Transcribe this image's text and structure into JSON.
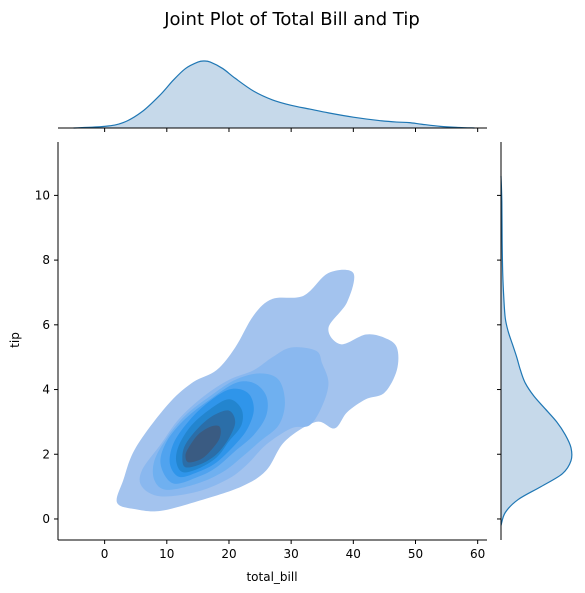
{
  "chart_data": {
    "type": "kde-joint",
    "title": "Joint Plot of Total Bill and Tip",
    "xlabel": "total_bill",
    "ylabel": "tip",
    "xlim": [
      -7.5,
      61.5
    ],
    "ylim": [
      -0.65,
      11.65
    ],
    "xticks": [
      0,
      10,
      20,
      30,
      40,
      50,
      60
    ],
    "yticks": [
      0,
      2,
      4,
      6,
      8,
      10
    ],
    "joint_fill_color": "#1f8fe8",
    "marginal_line_color": "#1f77b4",
    "marginal_fill_color": "#c6d9ea",
    "marginal_x_density": {
      "x": [
        -5,
        0,
        3,
        6,
        9,
        11,
        13,
        15,
        16,
        17,
        19,
        21,
        24,
        27,
        30,
        33,
        36,
        40,
        44,
        47,
        49,
        51,
        54,
        57,
        59.5
      ],
      "density": [
        0.0,
        0.003,
        0.01,
        0.03,
        0.062,
        0.088,
        0.11,
        0.122,
        0.124,
        0.122,
        0.11,
        0.092,
        0.068,
        0.052,
        0.042,
        0.035,
        0.028,
        0.02,
        0.014,
        0.011,
        0.01,
        0.007,
        0.003,
        0.001,
        0.0
      ]
    },
    "marginal_y_density": {
      "y": [
        -0.2,
        0.2,
        0.6,
        1.0,
        1.4,
        1.8,
        2.2,
        2.6,
        3.0,
        3.4,
        3.8,
        4.2,
        4.6,
        5.0,
        5.4,
        5.8,
        6.2,
        6.8,
        7.6,
        8.6,
        9.8,
        10.6
      ],
      "density": [
        0.0,
        0.015,
        0.06,
        0.14,
        0.215,
        0.245,
        0.245,
        0.225,
        0.195,
        0.155,
        0.115,
        0.085,
        0.068,
        0.055,
        0.04,
        0.025,
        0.015,
        0.01,
        0.006,
        0.004,
        0.003,
        0.0
      ]
    },
    "contour_levels": [
      {
        "level": 1,
        "color": "#a3c3ee",
        "points": [
          [
            9,
            0.25
          ],
          [
            15,
            0.55
          ],
          [
            22,
            1.0
          ],
          [
            26,
            1.5
          ],
          [
            29,
            2.4
          ],
          [
            34,
            3.0
          ],
          [
            37,
            2.8
          ],
          [
            39,
            3.3
          ],
          [
            42,
            3.7
          ],
          [
            45,
            3.9
          ],
          [
            47,
            4.6
          ],
          [
            47,
            5.3
          ],
          [
            45,
            5.6
          ],
          [
            42,
            5.7
          ],
          [
            38,
            5.4
          ],
          [
            36,
            5.9
          ],
          [
            39,
            6.7
          ],
          [
            40,
            7.6
          ],
          [
            36,
            7.6
          ],
          [
            32,
            6.9
          ],
          [
            27,
            6.8
          ],
          [
            24,
            6.3
          ],
          [
            21,
            5.3
          ],
          [
            18,
            4.6
          ],
          [
            14,
            4.2
          ],
          [
            10,
            3.5
          ],
          [
            5,
            2.2
          ],
          [
            3,
            1.2
          ],
          [
            2,
            0.5
          ],
          [
            5,
            0.3
          ]
        ]
      },
      {
        "level": 2,
        "color": "#8ab8ef",
        "points": [
          [
            9,
            0.7
          ],
          [
            15,
            0.85
          ],
          [
            20,
            1.25
          ],
          [
            23,
            1.7
          ],
          [
            26,
            2.3
          ],
          [
            30,
            2.8
          ],
          [
            33,
            2.9
          ],
          [
            35,
            3.5
          ],
          [
            36,
            4.2
          ],
          [
            35,
            4.8
          ],
          [
            34,
            5.2
          ],
          [
            30,
            5.3
          ],
          [
            27,
            5.0
          ],
          [
            24,
            4.6
          ],
          [
            20,
            4.3
          ],
          [
            16,
            3.8
          ],
          [
            12,
            3.1
          ],
          [
            9,
            2.3
          ],
          [
            6,
            1.5
          ],
          [
            6,
            1.0
          ]
        ]
      },
      {
        "level": 3,
        "color": "#6fb0f0",
        "points": [
          [
            10,
            0.9
          ],
          [
            15,
            1.1
          ],
          [
            19,
            1.45
          ],
          [
            22,
            1.9
          ],
          [
            25,
            2.4
          ],
          [
            28,
            2.9
          ],
          [
            29,
            3.6
          ],
          [
            28,
            4.3
          ],
          [
            25,
            4.5
          ],
          [
            21,
            4.3
          ],
          [
            17,
            3.8
          ],
          [
            13,
            3.2
          ],
          [
            10,
            2.5
          ],
          [
            8,
            1.8
          ],
          [
            8,
            1.2
          ]
        ]
      },
      {
        "level": 4,
        "color": "#50a3ef",
        "points": [
          [
            11,
            1.1
          ],
          [
            15,
            1.3
          ],
          [
            18,
            1.6
          ],
          [
            21,
            2.1
          ],
          [
            24,
            2.6
          ],
          [
            26,
            3.2
          ],
          [
            26,
            3.8
          ],
          [
            24,
            4.2
          ],
          [
            21,
            4.2
          ],
          [
            17,
            3.7
          ],
          [
            13,
            3.1
          ],
          [
            10,
            2.4
          ],
          [
            9,
            1.7
          ]
        ]
      },
      {
        "level": 5,
        "color": "#2f95ea",
        "points": [
          [
            12,
            1.3
          ],
          [
            15,
            1.45
          ],
          [
            18,
            1.75
          ],
          [
            21,
            2.3
          ],
          [
            23,
            2.8
          ],
          [
            24,
            3.4
          ],
          [
            23,
            3.9
          ],
          [
            20,
            4.0
          ],
          [
            16,
            3.5
          ],
          [
            13,
            2.9
          ],
          [
            11,
            2.3
          ],
          [
            10.5,
            1.7
          ]
        ]
      },
      {
        "level": 6,
        "color": "#2385cf",
        "points": [
          [
            12.5,
            1.45
          ],
          [
            15,
            1.55
          ],
          [
            18,
            1.9
          ],
          [
            20,
            2.4
          ],
          [
            22,
            2.9
          ],
          [
            22,
            3.4
          ],
          [
            20,
            3.7
          ],
          [
            17,
            3.4
          ],
          [
            14,
            2.9
          ],
          [
            12,
            2.3
          ],
          [
            11.5,
            1.8
          ]
        ]
      },
      {
        "level": 7,
        "color": "#2b6ea8",
        "points": [
          [
            13,
            1.6
          ],
          [
            15.5,
            1.7
          ],
          [
            18,
            2.0
          ],
          [
            20,
            2.5
          ],
          [
            21,
            3.0
          ],
          [
            20,
            3.35
          ],
          [
            17.5,
            3.2
          ],
          [
            15,
            2.8
          ],
          [
            13,
            2.3
          ],
          [
            12.5,
            1.9
          ]
        ]
      },
      {
        "level": 8,
        "color": "#3a5b82",
        "points": [
          [
            13.5,
            1.75
          ],
          [
            15.5,
            1.85
          ],
          [
            17,
            2.1
          ],
          [
            18.5,
            2.5
          ],
          [
            18.5,
            2.85
          ],
          [
            17,
            2.85
          ],
          [
            15,
            2.6
          ],
          [
            13.5,
            2.2
          ],
          [
            13,
            1.95
          ]
        ]
      }
    ]
  }
}
